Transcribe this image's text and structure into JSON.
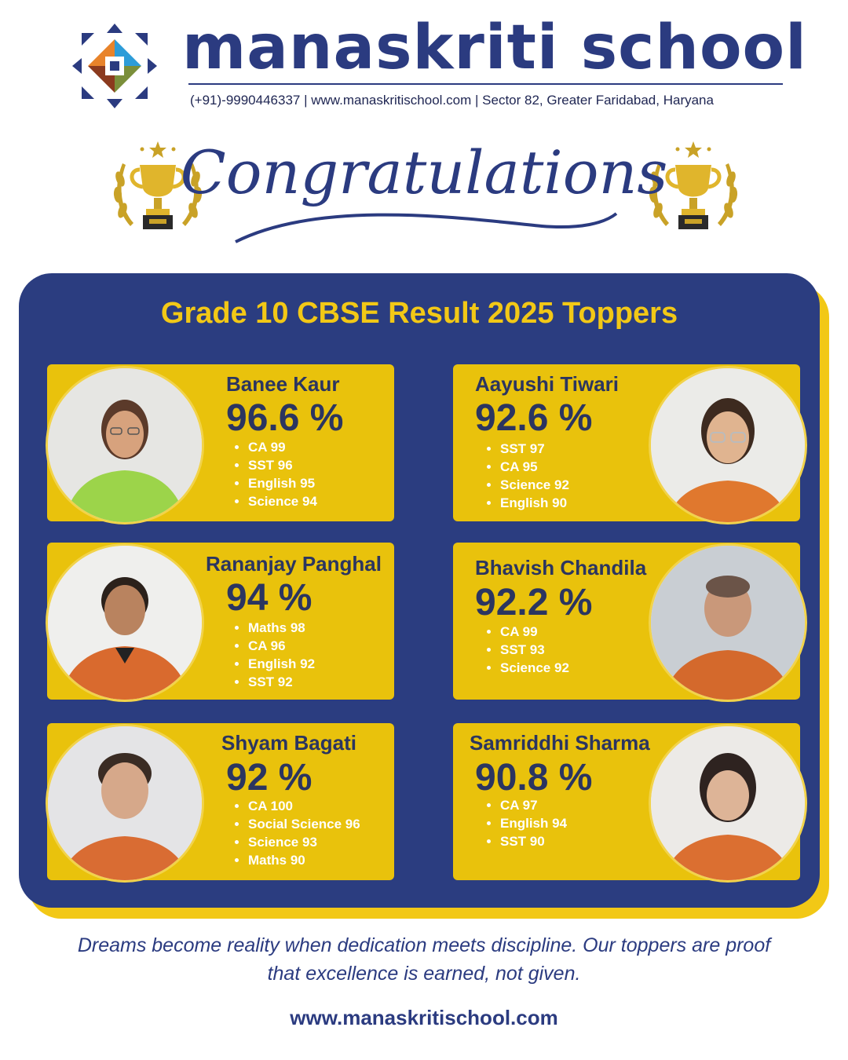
{
  "header": {
    "school_name": "manaskriti school",
    "contact_line": "(+91)-9990446337 | www.manaskritischool.com | Sector 82, Greater Faridabad, Haryana"
  },
  "banner": {
    "title": "Congratulations"
  },
  "results": {
    "title": "Grade 10 CBSE Result 2025 Toppers",
    "toppers": [
      {
        "name": "Banee Kaur",
        "percentage": "96.6 %",
        "subjects": [
          "CA 99",
          "SST 96",
          "English 95",
          "Science 94"
        ]
      },
      {
        "name": "Aayushi Tiwari",
        "percentage": "92.6 %",
        "subjects": [
          "SST 97",
          "CA 95",
          "Science 92",
          "English 90"
        ]
      },
      {
        "name": "Rananjay Panghal",
        "percentage": "94 %",
        "subjects": [
          "Maths 98",
          "CA 96",
          "English 92",
          "SST 92"
        ]
      },
      {
        "name": "Bhavish Chandila",
        "percentage": "92.2 %",
        "subjects": [
          "CA 99",
          "SST 93",
          "Science 92"
        ]
      },
      {
        "name": "Shyam Bagati",
        "percentage": "92 %",
        "subjects": [
          "CA 100",
          "Social Science 96",
          "Science 93",
          "Maths 90"
        ]
      },
      {
        "name": "Samriddhi Sharma",
        "percentage": "90.8 %",
        "subjects": [
          "CA 97",
          "English 94",
          "SST 90"
        ]
      }
    ]
  },
  "footer": {
    "quote": "Dreams become reality when dedication meets discipline. Our toppers are proof that excellence is earned, not given.",
    "url": "www.manaskritischool.com"
  },
  "colors": {
    "navy": "#2b3d80",
    "gold": "#e9c20c",
    "text_dark": "#2b3560"
  },
  "icons": [
    "school-logo-icon",
    "trophy-icon",
    "laurel-icon",
    "star-icon"
  ]
}
